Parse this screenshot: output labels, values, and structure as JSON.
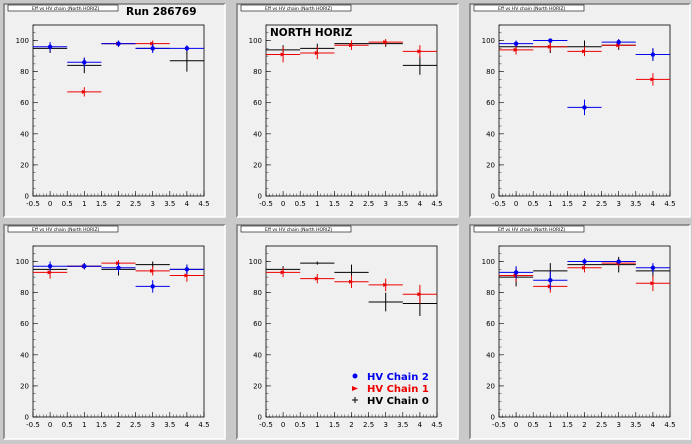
{
  "figure": {
    "run_label": "Run 286769",
    "region_label": "NORTH HORIZ",
    "legend": [
      {
        "name": "HV Chain 2",
        "color": "#0000ee",
        "marker": "circle"
      },
      {
        "name": "HV Chain 1",
        "color": "#ee0000",
        "marker": "arrow"
      },
      {
        "name": "HV Chain 0",
        "color": "#000000",
        "marker": "cross"
      }
    ],
    "pad_titles": [
      "Eff vs HV chain (North HORIZ)",
      "Eff vs HV chain (North HORIZ)",
      "Eff vs HV chain (North HORIZ)",
      "Eff vs HV chain (North HORIZ)",
      "Eff vs HV chain (North HORIZ)",
      "Eff vs HV chain (North HORIZ)"
    ]
  },
  "chart_data": [
    {
      "type": "scatter",
      "xlim": [
        -0.5,
        4.5
      ],
      "ylim": [
        0,
        110
      ],
      "x_ticks": [
        "-0.5",
        "0",
        "0.5",
        "1",
        "1.5",
        "2",
        "2.5",
        "3",
        "3.5",
        "4",
        "4.5"
      ],
      "y_ticks": [
        "0",
        "20",
        "40",
        "60",
        "80",
        "100"
      ],
      "x_halfwidth": 0.5,
      "series": [
        {
          "name": "HV Chain 2",
          "x": [
            0,
            1,
            2,
            3,
            4
          ],
          "y": [
            96,
            86,
            98,
            95,
            95
          ],
          "yerr": [
            3,
            3,
            2,
            3,
            2
          ]
        },
        {
          "name": "HV Chain 1",
          "x": [
            1,
            2,
            3
          ],
          "y": [
            67,
            98,
            98
          ],
          "yerr": [
            3,
            2,
            2
          ]
        },
        {
          "name": "HV Chain 0",
          "x": [
            0,
            1,
            2,
            3,
            4
          ],
          "y": [
            95,
            84,
            98,
            95,
            87
          ],
          "yerr": [
            3,
            5,
            2,
            2,
            7
          ]
        }
      ]
    },
    {
      "type": "scatter",
      "xlim": [
        -0.5,
        4.5
      ],
      "ylim": [
        0,
        110
      ],
      "x_ticks": [
        "-0.5",
        "0",
        "0.5",
        "1",
        "1.5",
        "2",
        "2.5",
        "3",
        "3.5",
        "4",
        "4.5"
      ],
      "y_ticks": [
        "0",
        "20",
        "40",
        "60",
        "80",
        "100"
      ],
      "x_halfwidth": 0.5,
      "series": [
        {
          "name": "HV Chain 2",
          "x": [],
          "y": [],
          "yerr": []
        },
        {
          "name": "HV Chain 1",
          "x": [
            0,
            1,
            2,
            3,
            4
          ],
          "y": [
            91,
            92,
            97,
            99,
            93
          ],
          "yerr": [
            5,
            4,
            3,
            2,
            4
          ]
        },
        {
          "name": "HV Chain 0",
          "x": [
            0,
            1,
            2,
            3,
            4
          ],
          "y": [
            94,
            95,
            98,
            98,
            84
          ],
          "yerr": [
            3,
            3,
            2,
            2,
            6
          ]
        }
      ]
    },
    {
      "type": "scatter",
      "xlim": [
        -0.5,
        4.5
      ],
      "ylim": [
        0,
        110
      ],
      "x_ticks": [
        "-0.5",
        "0",
        "0.5",
        "1",
        "1.5",
        "2",
        "2.5",
        "3",
        "3.5",
        "4",
        "4.5"
      ],
      "y_ticks": [
        "0",
        "20",
        "40",
        "60",
        "80",
        "100"
      ],
      "x_halfwidth": 0.5,
      "series": [
        {
          "name": "HV Chain 2",
          "x": [
            0,
            1,
            2,
            3,
            4
          ],
          "y": [
            98,
            100,
            57,
            99,
            91
          ],
          "yerr": [
            2,
            1,
            5,
            2,
            4
          ]
        },
        {
          "name": "HV Chain 1",
          "x": [
            0,
            1,
            2,
            3,
            4
          ],
          "y": [
            94,
            96,
            93,
            97,
            75
          ],
          "yerr": [
            3,
            3,
            3,
            2,
            4
          ]
        },
        {
          "name": "HV Chain 0",
          "x": [
            0,
            1,
            2,
            3,
            4
          ],
          "y": [
            96,
            96,
            96,
            97,
            91
          ],
          "yerr": [
            3,
            4,
            4,
            3,
            4
          ]
        }
      ]
    },
    {
      "type": "scatter",
      "xlim": [
        -0.5,
        4.5
      ],
      "ylim": [
        0,
        110
      ],
      "x_ticks": [
        "-0.5",
        "0",
        "0.5",
        "1",
        "1.5",
        "2",
        "2.5",
        "3",
        "3.5",
        "4",
        "4.5"
      ],
      "y_ticks": [
        "0",
        "20",
        "40",
        "60",
        "80",
        "100"
      ],
      "x_halfwidth": 0.5,
      "series": [
        {
          "name": "HV Chain 2",
          "x": [
            0,
            1,
            2,
            3,
            4
          ],
          "y": [
            97,
            97,
            96,
            84,
            95
          ],
          "yerr": [
            3,
            2,
            3,
            4,
            3
          ]
        },
        {
          "name": "HV Chain 1",
          "x": [
            0,
            1,
            2,
            3,
            4
          ],
          "y": [
            93,
            97,
            99,
            94,
            91
          ],
          "yerr": [
            4,
            2,
            2,
            3,
            4
          ]
        },
        {
          "name": "HV Chain 0",
          "x": [
            0,
            1,
            2,
            3,
            4
          ],
          "y": [
            95,
            97,
            95,
            98,
            95
          ],
          "yerr": [
            3,
            2,
            4,
            2,
            3
          ]
        }
      ]
    },
    {
      "type": "scatter",
      "xlim": [
        -0.5,
        4.5
      ],
      "ylim": [
        0,
        110
      ],
      "x_ticks": [
        "-0.5",
        "0",
        "0.5",
        "1",
        "1.5",
        "2",
        "2.5",
        "3",
        "3.5",
        "4",
        "4.5"
      ],
      "y_ticks": [
        "0",
        "20",
        "40",
        "60",
        "80",
        "100"
      ],
      "x_halfwidth": 0.5,
      "series": [
        {
          "name": "HV Chain 2",
          "x": [],
          "y": [],
          "yerr": []
        },
        {
          "name": "HV Chain 1",
          "x": [
            0,
            1,
            2,
            3,
            4
          ],
          "y": [
            93,
            89,
            87,
            85,
            79
          ],
          "yerr": [
            3,
            3,
            4,
            4,
            6
          ]
        },
        {
          "name": "HV Chain 0",
          "x": [
            0,
            1,
            2,
            3,
            4
          ],
          "y": [
            95,
            99,
            93,
            74,
            73
          ],
          "yerr": [
            2,
            1,
            5,
            6,
            8
          ]
        }
      ]
    },
    {
      "type": "scatter",
      "xlim": [
        -0.5,
        4.5
      ],
      "ylim": [
        0,
        110
      ],
      "x_ticks": [
        "-0.5",
        "0",
        "0.5",
        "1",
        "1.5",
        "2",
        "2.5",
        "3",
        "3.5",
        "4",
        "4.5"
      ],
      "y_ticks": [
        "0",
        "20",
        "40",
        "60",
        "80",
        "100"
      ],
      "x_halfwidth": 0.5,
      "series": [
        {
          "name": "HV Chain 2",
          "x": [
            0,
            1,
            2,
            3,
            4
          ],
          "y": [
            93,
            88,
            100,
            100,
            96
          ],
          "yerr": [
            4,
            6,
            2,
            1,
            3
          ]
        },
        {
          "name": "HV Chain 1",
          "x": [
            0,
            1,
            2,
            3,
            4
          ],
          "y": [
            91,
            84,
            96,
            99,
            86
          ],
          "yerr": [
            4,
            4,
            3,
            2,
            5
          ]
        },
        {
          "name": "HV Chain 0",
          "x": [
            0,
            1,
            2,
            3,
            4
          ],
          "y": [
            90,
            94,
            98,
            98,
            94
          ],
          "yerr": [
            6,
            5,
            3,
            5,
            4
          ]
        }
      ]
    }
  ]
}
